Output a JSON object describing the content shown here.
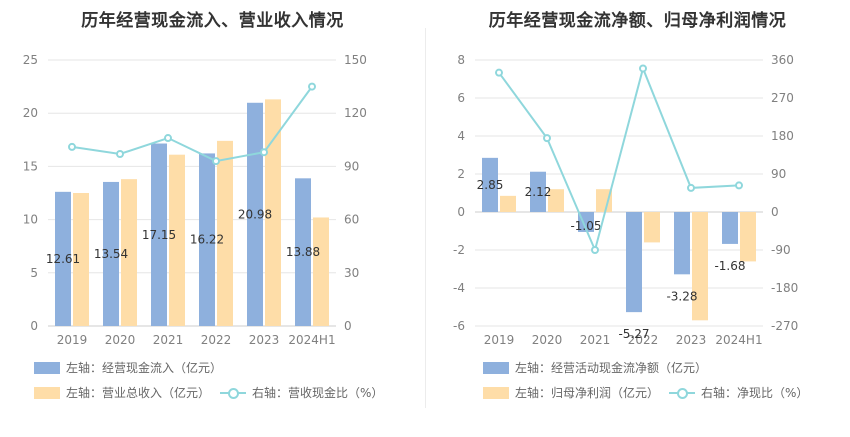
{
  "chart_data": [
    {
      "type": "bar",
      "title": "历年经营现金流入、营业收入情况",
      "categories": [
        "2019",
        "2020",
        "2021",
        "2022",
        "2023",
        "2024H1"
      ],
      "series": [
        {
          "name": "左轴：经营现金流入（亿元）",
          "axis": "left",
          "color": "#8eb0dd",
          "values": [
            12.61,
            13.54,
            17.15,
            16.22,
            20.98,
            13.88
          ]
        },
        {
          "name": "左轴：营业总收入（亿元）",
          "axis": "left",
          "color": "#fedda8",
          "values": [
            12.5,
            13.8,
            16.1,
            17.4,
            21.3,
            10.2
          ]
        },
        {
          "name": "右轴：营收现金比（%）",
          "axis": "right",
          "type": "line",
          "color": "#8fd7dc",
          "values": [
            101,
            97,
            106,
            93,
            98,
            135
          ]
        }
      ],
      "ylim_left": [
        0,
        25
      ],
      "yticks_left": [
        0,
        5,
        10,
        15,
        20,
        25
      ],
      "ylim_right": [
        0,
        150
      ],
      "yticks_right": [
        0,
        30,
        60,
        90,
        120,
        150
      ],
      "data_labels": [
        "12.61",
        "13.54",
        "17.15",
        "16.22",
        "20.98",
        "13.88"
      ],
      "grid": true,
      "legend": "bottom"
    },
    {
      "type": "bar",
      "title": "历年经营现金流净额、归母净利润情况",
      "categories": [
        "2019",
        "2020",
        "2021",
        "2022",
        "2023",
        "2024H1"
      ],
      "series": [
        {
          "name": "左轴：经营活动现金流净额（亿元）",
          "axis": "left",
          "color": "#8eb0dd",
          "values": [
            2.85,
            2.12,
            -1.05,
            -5.27,
            -3.28,
            -1.68
          ]
        },
        {
          "name": "左轴：归母净利润（亿元）",
          "axis": "left",
          "color": "#fedda8",
          "values": [
            0.85,
            1.2,
            1.2,
            -1.6,
            -5.7,
            -2.6
          ]
        },
        {
          "name": "右轴：净现比（%）",
          "axis": "right",
          "type": "line",
          "color": "#8fd7dc",
          "values": [
            330,
            175,
            -90,
            340,
            57,
            63
          ]
        }
      ],
      "ylim_left": [
        -6,
        8
      ],
      "yticks_left": [
        -6,
        -4,
        -2,
        0,
        2,
        4,
        6,
        8
      ],
      "ylim_right": [
        -270,
        360
      ],
      "yticks_right": [
        -270,
        -180,
        -90,
        0,
        90,
        180,
        270,
        360
      ],
      "data_labels": [
        "2.85",
        "2.12",
        "-1.05",
        "-5.27",
        "-3.28",
        "-1.68"
      ],
      "grid": true,
      "legend": "bottom"
    }
  ]
}
